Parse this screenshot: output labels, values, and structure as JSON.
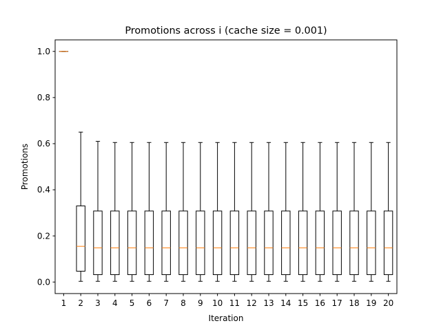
{
  "chart_data": {
    "type": "box",
    "title": "Promotions across i (cache size = 0.001)",
    "xlabel": "Iteration",
    "ylabel": "Promotions",
    "ylim": [
      -0.05,
      1.05
    ],
    "yticks": [
      0.0,
      0.2,
      0.4,
      0.6,
      0.8,
      1.0
    ],
    "ytick_labels": [
      "0.0",
      "0.2",
      "0.4",
      "0.6",
      "0.8",
      "1.0"
    ],
    "grid": false,
    "colors": {
      "box": "#000000",
      "median": "#ff7f0e"
    },
    "categories": [
      "1",
      "2",
      "3",
      "4",
      "5",
      "6",
      "7",
      "8",
      "9",
      "10",
      "11",
      "12",
      "13",
      "14",
      "15",
      "16",
      "17",
      "18",
      "19",
      "20"
    ],
    "boxes": [
      {
        "whislo": 1.0,
        "q1": 1.0,
        "med": 1.0,
        "q3": 1.0,
        "whishi": 1.0
      },
      {
        "whislo": 0.003,
        "q1": 0.047,
        "med": 0.155,
        "q3": 0.33,
        "whishi": 0.65
      },
      {
        "whislo": 0.003,
        "q1": 0.032,
        "med": 0.148,
        "q3": 0.308,
        "whishi": 0.61
      },
      {
        "whislo": 0.003,
        "q1": 0.032,
        "med": 0.148,
        "q3": 0.308,
        "whishi": 0.605
      },
      {
        "whislo": 0.003,
        "q1": 0.032,
        "med": 0.148,
        "q3": 0.308,
        "whishi": 0.605
      },
      {
        "whislo": 0.003,
        "q1": 0.032,
        "med": 0.148,
        "q3": 0.308,
        "whishi": 0.605
      },
      {
        "whislo": 0.003,
        "q1": 0.032,
        "med": 0.148,
        "q3": 0.308,
        "whishi": 0.605
      },
      {
        "whislo": 0.003,
        "q1": 0.032,
        "med": 0.148,
        "q3": 0.308,
        "whishi": 0.605
      },
      {
        "whislo": 0.003,
        "q1": 0.032,
        "med": 0.148,
        "q3": 0.308,
        "whishi": 0.605
      },
      {
        "whislo": 0.003,
        "q1": 0.032,
        "med": 0.148,
        "q3": 0.308,
        "whishi": 0.605
      },
      {
        "whislo": 0.003,
        "q1": 0.032,
        "med": 0.148,
        "q3": 0.308,
        "whishi": 0.605
      },
      {
        "whislo": 0.003,
        "q1": 0.032,
        "med": 0.148,
        "q3": 0.308,
        "whishi": 0.605
      },
      {
        "whislo": 0.003,
        "q1": 0.032,
        "med": 0.148,
        "q3": 0.308,
        "whishi": 0.605
      },
      {
        "whislo": 0.003,
        "q1": 0.032,
        "med": 0.148,
        "q3": 0.308,
        "whishi": 0.605
      },
      {
        "whislo": 0.003,
        "q1": 0.032,
        "med": 0.148,
        "q3": 0.308,
        "whishi": 0.605
      },
      {
        "whislo": 0.003,
        "q1": 0.032,
        "med": 0.148,
        "q3": 0.308,
        "whishi": 0.605
      },
      {
        "whislo": 0.003,
        "q1": 0.032,
        "med": 0.148,
        "q3": 0.308,
        "whishi": 0.605
      },
      {
        "whislo": 0.003,
        "q1": 0.032,
        "med": 0.148,
        "q3": 0.308,
        "whishi": 0.605
      },
      {
        "whislo": 0.003,
        "q1": 0.032,
        "med": 0.148,
        "q3": 0.308,
        "whishi": 0.605
      },
      {
        "whislo": 0.003,
        "q1": 0.032,
        "med": 0.148,
        "q3": 0.308,
        "whishi": 0.605
      }
    ]
  }
}
